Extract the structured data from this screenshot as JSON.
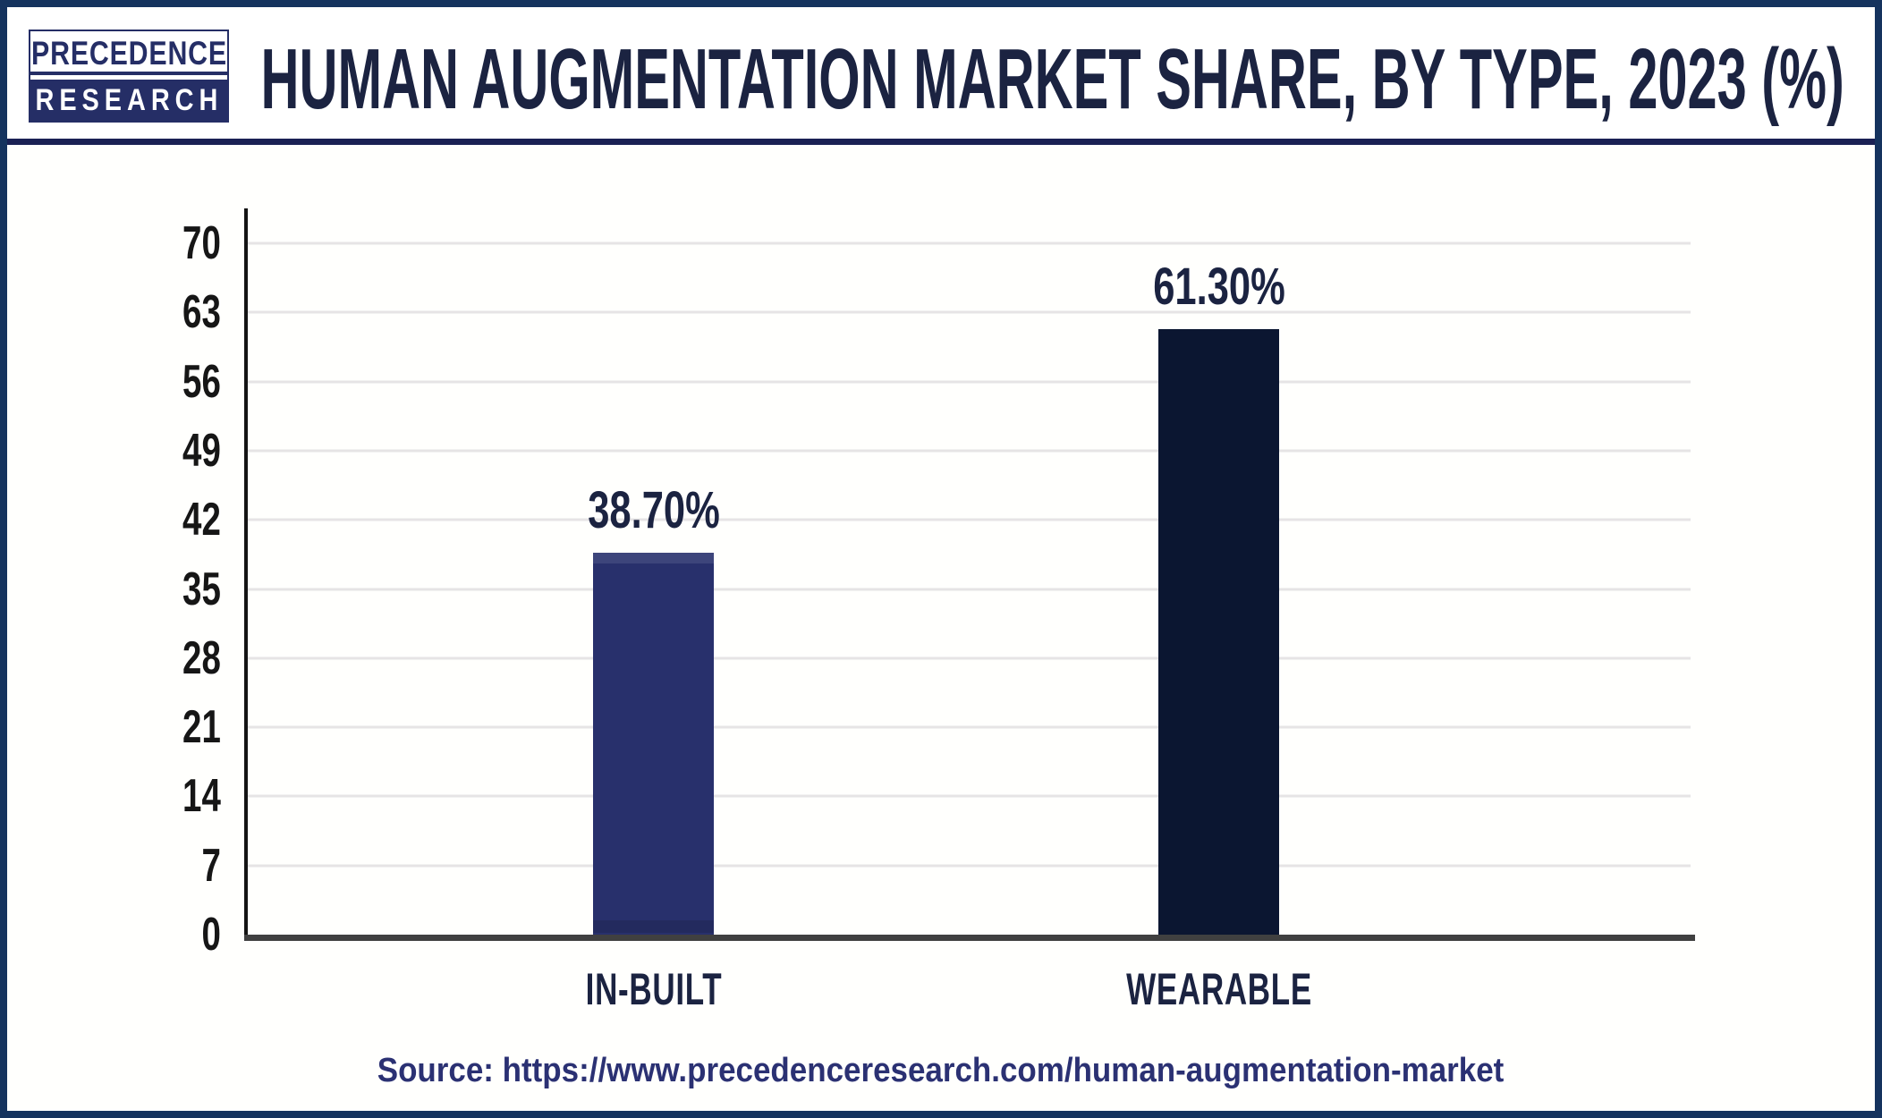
{
  "header": {
    "logo_line1": "PRECEDENCE",
    "logo_line2": "RESEARCH",
    "title": "HUMAN AUGMENTATION MARKET SHARE, BY TYPE, 2023 (%)"
  },
  "chart_data": {
    "type": "bar",
    "title": "Human Augmentation Market Share, by Type, 2023 (%)",
    "categories": [
      "IN-BUILT",
      "WEARABLE"
    ],
    "values": [
      38.7,
      61.3
    ],
    "value_labels": [
      "38.70%",
      "61.30%"
    ],
    "bar_colors": [
      "#28306c",
      "#0b1631"
    ],
    "yticks": [
      0,
      7,
      14,
      21,
      28,
      35,
      42,
      49,
      56,
      63,
      70
    ],
    "ylim": [
      0,
      70
    ],
    "xlabel": "",
    "ylabel": "",
    "grid": "horizontal",
    "legend": "none"
  },
  "footer": {
    "source_label": "Source:",
    "source_url": "https://www.precedenceresearch.com/human-augmentation-market"
  }
}
